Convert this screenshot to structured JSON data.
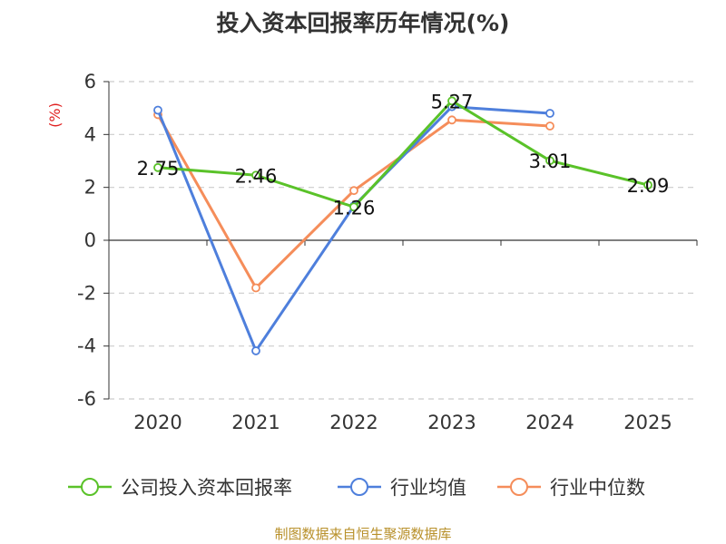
{
  "chart_data": {
    "type": "line",
    "title": "投入资本回报率历年情况(%)",
    "ylabel": "(%)",
    "categories": [
      "2020",
      "2021",
      "2022",
      "2023",
      "2024",
      "2025"
    ],
    "ylim": [
      -6,
      6
    ],
    "yticks": [
      -6,
      -4,
      -2,
      0,
      2,
      4,
      6
    ],
    "grid": true,
    "legend_position": "bottom",
    "series": [
      {
        "name": "公司投入资本回报率",
        "color": "#5ac229",
        "values": [
          2.75,
          2.46,
          1.26,
          5.27,
          3.01,
          2.09
        ],
        "labels": [
          "2.75",
          "2.46",
          "1.26",
          "5.27",
          "3.01",
          "2.09"
        ]
      },
      {
        "name": "行业均值",
        "color": "#4e7fdc",
        "values": [
          4.92,
          -4.18,
          1.3,
          5.05,
          4.8,
          null
        ]
      },
      {
        "name": "行业中位数",
        "color": "#f58d5a",
        "values": [
          4.75,
          -1.8,
          1.88,
          4.55,
          4.32,
          null
        ]
      }
    ]
  },
  "source": "制图数据来自恒生聚源数据库"
}
